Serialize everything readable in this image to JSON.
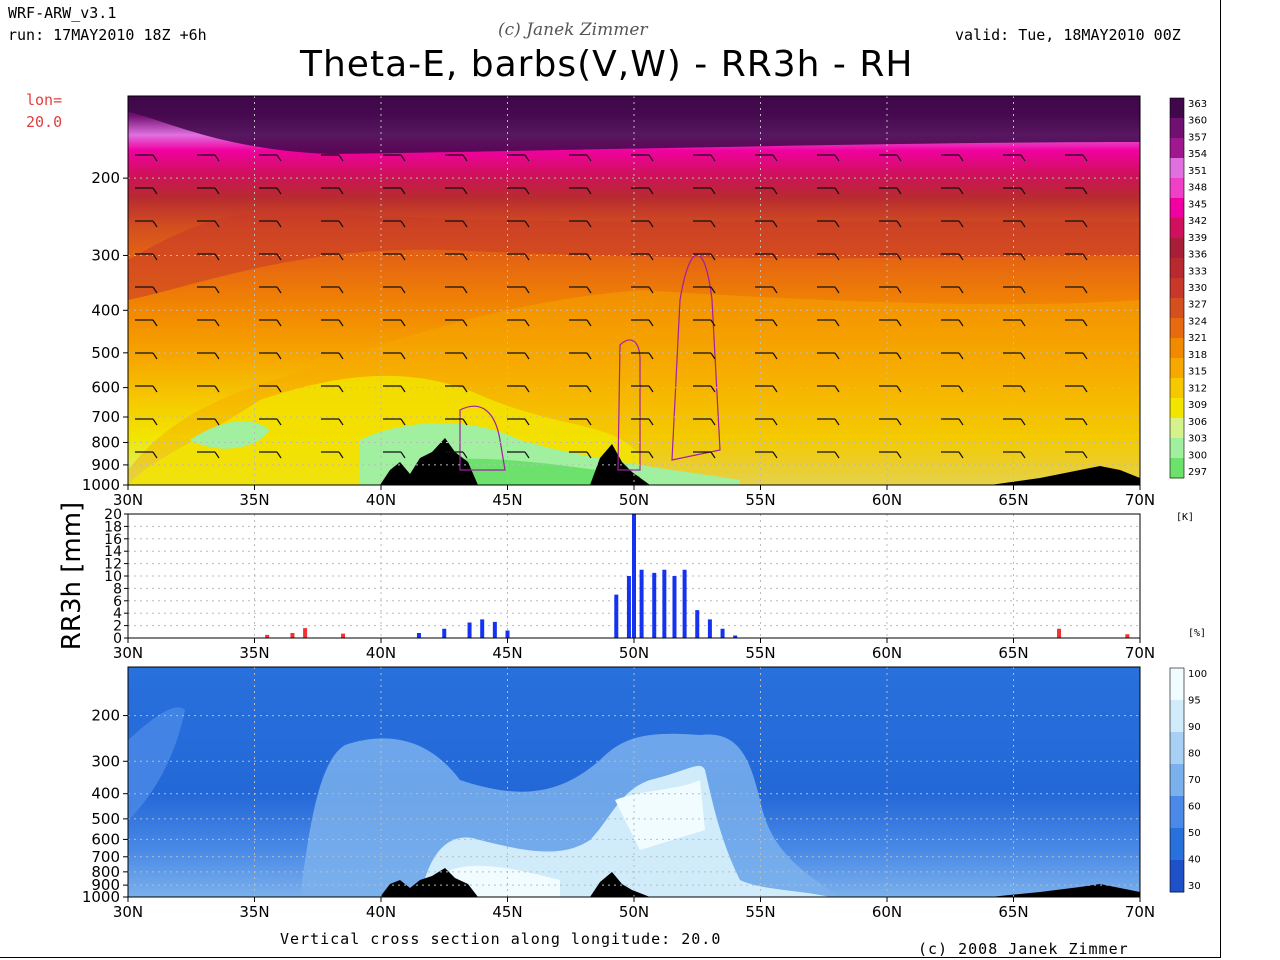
{
  "header": {
    "model": "WRF-ARW_v3.1",
    "run": "run: 17MAY2010 18Z +6h",
    "valid": "valid: Tue, 18MAY2010 00Z",
    "copyright_top": "(c) Janek Zimmer",
    "title": "Theta-E, barbs(V,W) - RR3h - RH"
  },
  "lon_label": {
    "line1": "lon=",
    "line2": "20.0"
  },
  "colors": {
    "theta_e_scale": [
      "#6ce26c",
      "#a0f0a0",
      "#d6f28c",
      "#f2e600",
      "#f6c800",
      "#f6a800",
      "#f28a00",
      "#e86a10",
      "#d4501e",
      "#c8382a",
      "#b82a30",
      "#a81e38",
      "#d0105c",
      "#f000a0",
      "#f040c8",
      "#e070e0",
      "#a01890",
      "#701070",
      "#40084a"
    ],
    "rh_scale": [
      "#1e50c8",
      "#2870dc",
      "#4a8ae6",
      "#7ab0ec",
      "#a8d0f4",
      "#d0ecfa",
      "#f0fcff"
    ],
    "precip_blue": "#1432f0",
    "precip_red": "#f03232",
    "terrain": "#000000"
  },
  "chart_data": [
    {
      "type": "heatmap",
      "title": "Theta-E, barbs(V,W)",
      "xlabel": "",
      "ylabel": "",
      "x_ticks": [
        "30N",
        "35N",
        "40N",
        "45N",
        "50N",
        "55N",
        "60N",
        "65N",
        "70N"
      ],
      "xlim": [
        30,
        70
      ],
      "y_ticks": [
        "200",
        "300",
        "400",
        "500",
        "600",
        "700",
        "800",
        "900",
        "1000"
      ],
      "ylim": [
        1000,
        130
      ],
      "y_scale": "log-pressure",
      "colorbar": {
        "unit": "[K]",
        "labels": [
          "363",
          "360",
          "357",
          "354",
          "351",
          "348",
          "345",
          "342",
          "339",
          "336",
          "333",
          "330",
          "327",
          "324",
          "321",
          "318",
          "315",
          "312",
          "309",
          "306",
          "303",
          "300",
          "297"
        ]
      }
    },
    {
      "type": "area",
      "title": "RR3h",
      "ylabel": "RR3h [mm]",
      "x_ticks": [
        "30N",
        "35N",
        "40N",
        "45N",
        "50N",
        "55N",
        "60N",
        "65N",
        "70N"
      ],
      "xlim": [
        30,
        70
      ],
      "y_ticks": [
        "0",
        "2",
        "4",
        "6",
        "8",
        "10",
        "12",
        "14",
        "16",
        "18",
        "20"
      ],
      "ylim": [
        0,
        20
      ],
      "grid": true,
      "series": [
        {
          "color": "#1432f0",
          "x": [
            41.5,
            42.5,
            43.5,
            44.0,
            44.5,
            45.0,
            49.3,
            49.8,
            50.0,
            50.3,
            50.8,
            51.2,
            51.6,
            52.0,
            52.5,
            53.0,
            53.5,
            54.0
          ],
          "values": [
            0.8,
            1.5,
            2.5,
            3.0,
            2.6,
            1.2,
            7.0,
            10.0,
            20.0,
            11.0,
            10.5,
            11.0,
            10.0,
            11.0,
            4.5,
            3.0,
            1.5,
            0.4
          ]
        },
        {
          "color": "#f03232",
          "x": [
            35.5,
            36.5,
            37.0,
            38.5,
            66.8,
            69.5
          ],
          "values": [
            0.5,
            0.8,
            1.6,
            0.7,
            1.5,
            0.6
          ]
        }
      ]
    },
    {
      "type": "heatmap",
      "title": "RH",
      "x_ticks": [
        "30N",
        "35N",
        "40N",
        "45N",
        "50N",
        "55N",
        "60N",
        "65N",
        "70N"
      ],
      "xlim": [
        30,
        70
      ],
      "y_ticks": [
        "200",
        "300",
        "400",
        "500",
        "600",
        "700",
        "800",
        "900",
        "1000"
      ],
      "ylim": [
        1000,
        130
      ],
      "y_scale": "log-pressure",
      "colorbar": {
        "unit": "[%]",
        "labels": [
          "100",
          "95",
          "90",
          "80",
          "70",
          "60",
          "50",
          "40",
          "30"
        ]
      }
    }
  ],
  "footer": {
    "caption": "Vertical cross section along longitude: 20.0",
    "copyright": "(c) 2008 Janek Zimmer"
  }
}
